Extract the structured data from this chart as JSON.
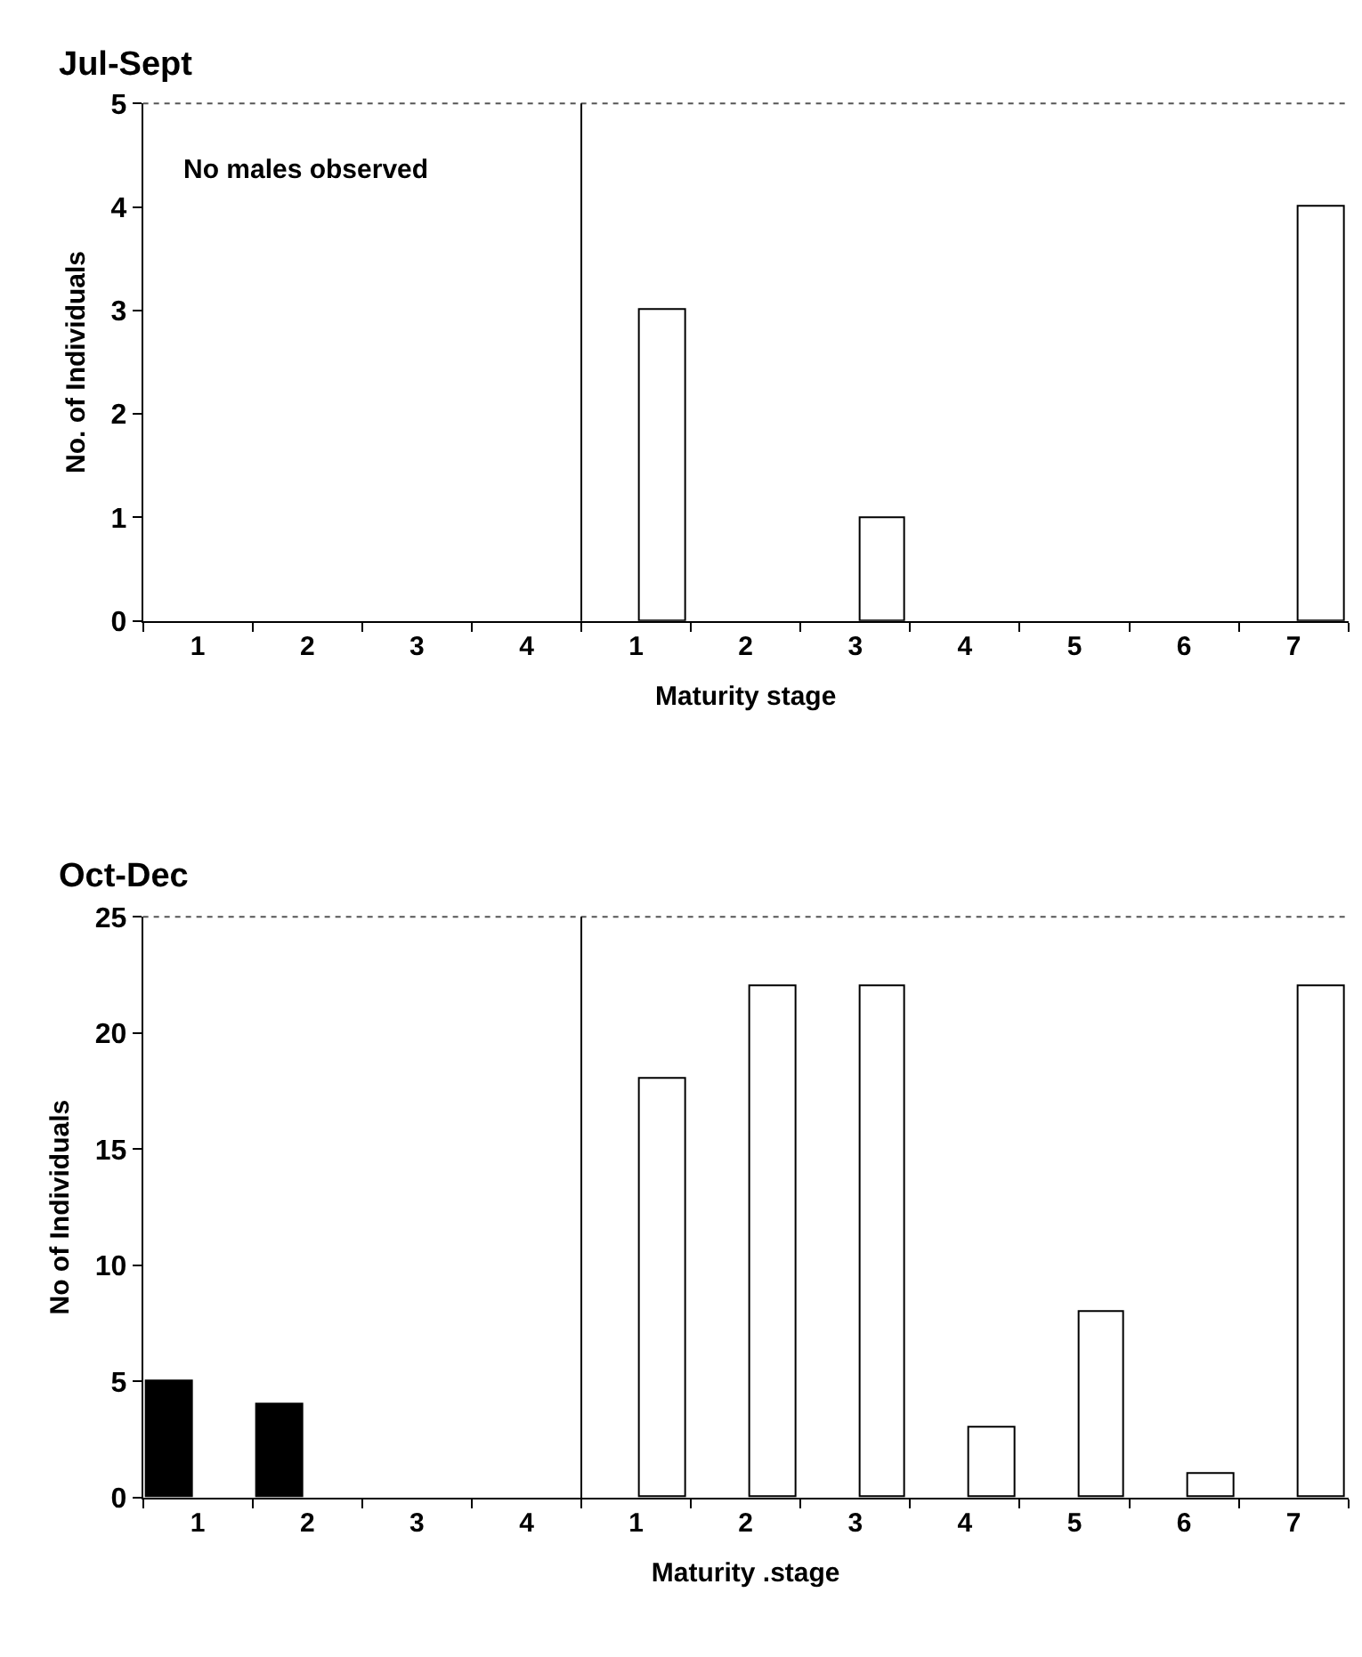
{
  "chart_data": [
    {
      "type": "bar",
      "title": "Jul-Sept",
      "xlabel": "Maturity stage",
      "ylabel": "No. of Individuals",
      "categories": [
        "1",
        "2",
        "3",
        "4",
        "1",
        "2",
        "3",
        "4",
        "5",
        "6",
        "7"
      ],
      "series": [
        {
          "color": "#000000",
          "values": [
            0,
            0,
            0,
            0,
            null,
            null,
            null,
            null,
            null,
            null,
            null
          ]
        },
        {
          "color": "#ffffff",
          "values": [
            null,
            null,
            null,
            null,
            3,
            0,
            1,
            0,
            0,
            0,
            4
          ]
        }
      ],
      "ylim": [
        0,
        5
      ],
      "yticks": [
        0,
        1,
        2,
        3,
        4,
        5
      ],
      "annotations": [
        "No males observed"
      ]
    },
    {
      "type": "bar",
      "title": "Oct-Dec",
      "xlabel": "Maturity .stage",
      "ylabel": "No of Individuals",
      "categories": [
        "1",
        "2",
        "3",
        "4",
        "1",
        "2",
        "3",
        "4",
        "5",
        "6",
        "7"
      ],
      "series": [
        {
          "color": "#000000",
          "values": [
            5,
            4,
            0,
            0,
            null,
            null,
            null,
            null,
            null,
            null,
            null
          ]
        },
        {
          "color": "#ffffff",
          "values": [
            null,
            null,
            null,
            null,
            18,
            22,
            22,
            3,
            8,
            1,
            22
          ]
        }
      ],
      "ylim": [
        0,
        25
      ],
      "yticks": [
        0,
        5,
        10,
        15,
        20,
        25
      ]
    }
  ]
}
